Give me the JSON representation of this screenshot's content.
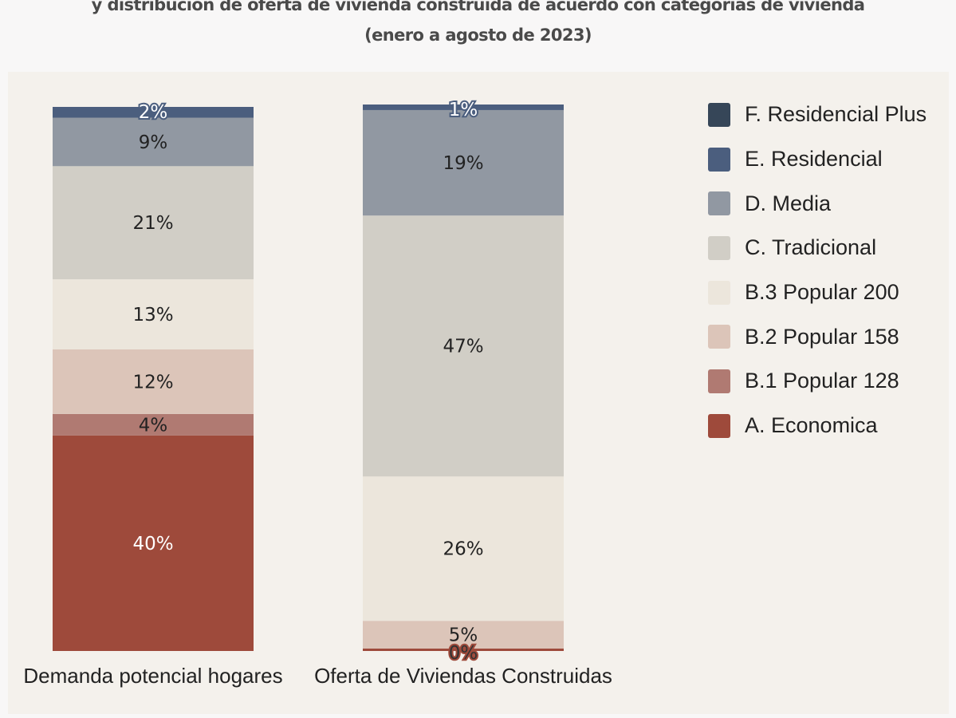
{
  "chart_data": {
    "type": "stacked-bar",
    "title": "y distribución de oferta de vivienda construida de acuerdo con categorías de vivienda",
    "subtitle": "(enero a agosto de 2023)",
    "categories": [
      "Demanda potencial hogares",
      "Oferta de Viviendas Construidas"
    ],
    "unit": "%",
    "legend_position": "right",
    "grid": false,
    "series": [
      {
        "name": "A. Economica",
        "color": "#9e4a3b",
        "values": [
          40,
          0
        ]
      },
      {
        "name": "B.1 Popular 128",
        "color": "#b07a72",
        "values": [
          4,
          null
        ]
      },
      {
        "name": "B.2 Popular 158",
        "color": "#dcc5b9",
        "values": [
          12,
          5
        ]
      },
      {
        "name": "B.3 Popular 200",
        "color": "#ece6dc",
        "values": [
          13,
          26
        ]
      },
      {
        "name": "C. Tradicional",
        "color": "#d1cec6",
        "values": [
          21,
          47
        ]
      },
      {
        "name": "D. Media",
        "color": "#9198a2",
        "values": [
          9,
          19
        ]
      },
      {
        "name": "E. Residencial",
        "color": "#4b5e7e",
        "values": [
          2,
          1
        ]
      },
      {
        "name": "F. Residencial Plus",
        "color": "#364658",
        "values": [
          null,
          null
        ]
      }
    ]
  }
}
